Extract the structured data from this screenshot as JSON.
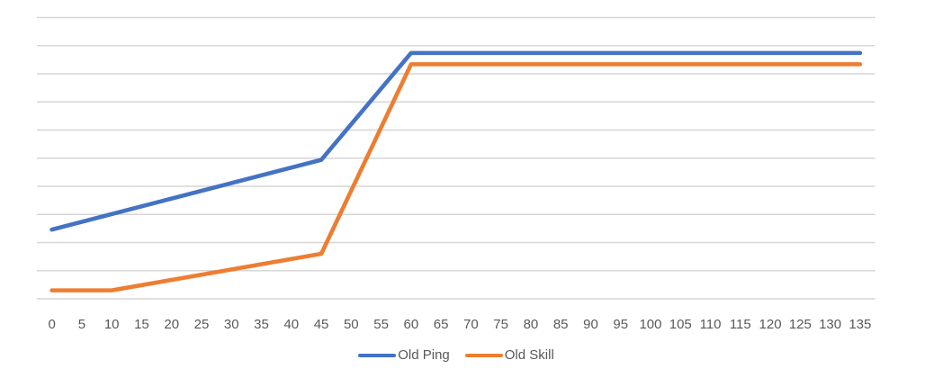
{
  "chart_data": {
    "type": "line",
    "title": "",
    "categories": [
      0,
      5,
      10,
      15,
      20,
      25,
      30,
      35,
      40,
      45,
      50,
      55,
      60,
      65,
      70,
      75,
      80,
      85,
      90,
      95,
      100,
      105,
      110,
      115,
      120,
      125,
      130,
      135
    ],
    "series": [
      {
        "name": "Old Ping",
        "color": "#4472C4",
        "points": [
          [
            0,
            123
          ],
          [
            45,
            247
          ],
          [
            60,
            437
          ],
          [
            135,
            437
          ]
        ]
      },
      {
        "name": "Old Skill",
        "color": "#ED7D31",
        "points": [
          [
            0,
            15
          ],
          [
            10,
            15
          ],
          [
            45,
            80
          ],
          [
            60,
            417
          ],
          [
            135,
            417
          ]
        ]
      }
    ],
    "ylim": [
      0,
      500
    ],
    "y_gridline_step": 50,
    "y_axis_tick_labels": "none",
    "grid": "horizontal-only",
    "gridline_color": "#D6D6D6",
    "axis_label_color": "#595959",
    "legend_position": "bottom-center",
    "legend": [
      "Old Ping",
      "Old Skill"
    ]
  }
}
